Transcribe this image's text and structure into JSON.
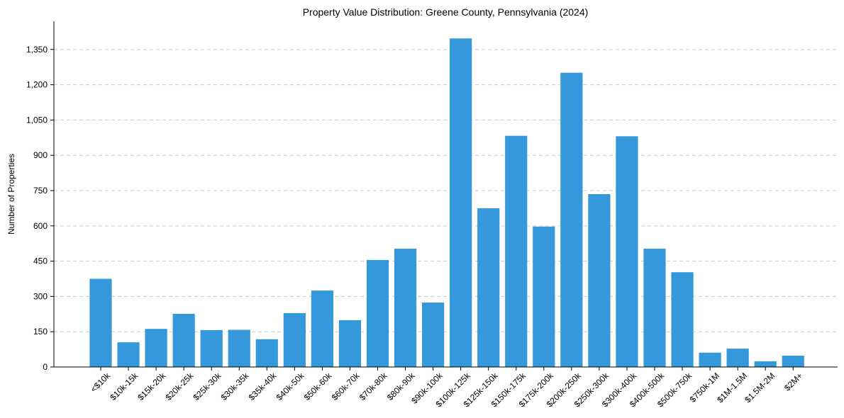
{
  "chart_data": {
    "type": "bar",
    "title": "Property Value Distribution: Greene County, Pennsylvania (2024)",
    "xlabel": "",
    "ylabel": "Number of Properties",
    "ylim": [
      0,
      1470
    ],
    "yticks": [
      0,
      150,
      300,
      450,
      600,
      750,
      900,
      1050,
      1200,
      1350
    ],
    "ytick_labels": [
      "0",
      "150",
      "300",
      "450",
      "600",
      "750",
      "900",
      "1,050",
      "1,200",
      "1,350"
    ],
    "grid": "y-dashed",
    "bar_color": "#3498db",
    "categories": [
      "<$10k",
      "$10k-15k",
      "$15k-20k",
      "$20k-25k",
      "$25k-30k",
      "$30k-35k",
      "$35k-40k",
      "$40k-50k",
      "$50k-60k",
      "$60k-70k",
      "$70k-80k",
      "$80k-90k",
      "$90k-100k",
      "$100k-125k",
      "$125k-150k",
      "$150k-175k",
      "$175k-200k",
      "$200k-250k",
      "$250k-300k",
      "$300k-400k",
      "$400k-500k",
      "$500k-750k",
      "$750k-1M",
      "$1M-1.5M",
      "$1.5M-2M",
      "$2M+"
    ],
    "values": [
      375,
      105,
      162,
      226,
      157,
      158,
      118,
      229,
      325,
      199,
      455,
      503,
      274,
      1397,
      675,
      983,
      597,
      1251,
      735,
      981,
      503,
      403,
      61,
      78,
      24,
      48
    ]
  }
}
